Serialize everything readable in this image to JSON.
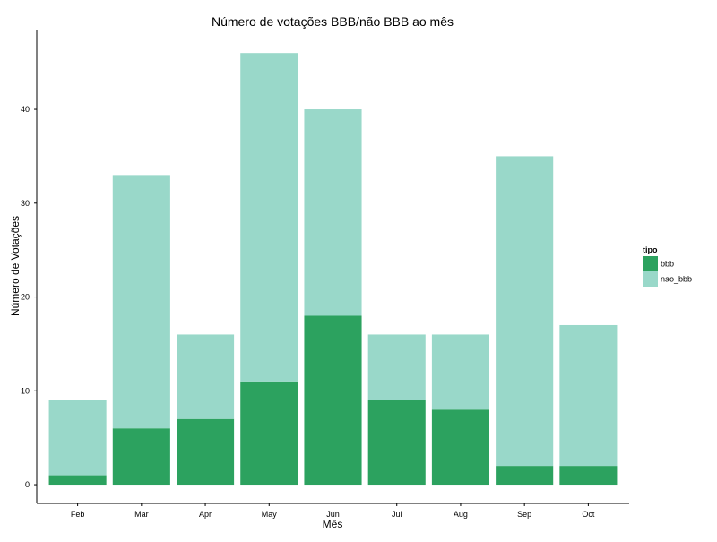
{
  "chart_data": {
    "type": "bar",
    "stacked": true,
    "title": "Número de votações BBB/não BBB ao mês",
    "xlabel": "Mês",
    "ylabel": "Número de Votações",
    "categories": [
      "Feb",
      "Mar",
      "Apr",
      "May",
      "Jun",
      "Jul",
      "Aug",
      "Sep",
      "Oct"
    ],
    "series": [
      {
        "name": "bbb",
        "values": [
          1,
          6,
          7,
          11,
          18,
          9,
          8,
          2,
          2
        ],
        "color": "#2ca25f"
      },
      {
        "name": "nao_bbb",
        "values": [
          8,
          27,
          9,
          35,
          22,
          7,
          8,
          33,
          15
        ],
        "color": "#99d8c9"
      }
    ],
    "ylim": [
      -2,
      48.5
    ],
    "yticks": [
      0,
      10,
      20,
      30,
      40
    ],
    "grid": false,
    "legend": {
      "title": "tipo",
      "position": "right"
    }
  }
}
